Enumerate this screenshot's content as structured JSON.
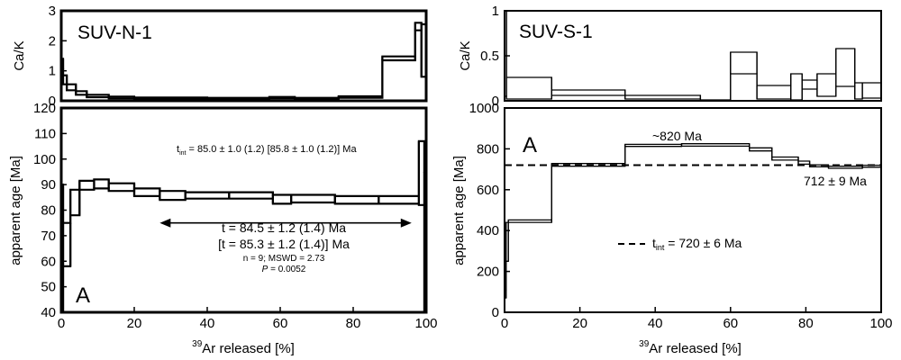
{
  "chart_data": [
    {
      "type": "step",
      "panel": "top-left",
      "sample_label": "SUV-N-1",
      "ylabel": "Ca/K",
      "xlim": [
        0,
        100
      ],
      "ylim": [
        0,
        3
      ],
      "yticks": [
        "0",
        "1",
        "2",
        "3"
      ],
      "spectrum": [
        {
          "x0": 0,
          "x1": 0.5,
          "lo": 1.05,
          "hi": 1.4
        },
        {
          "x0": 0.5,
          "x1": 1.5,
          "lo": 0.55,
          "hi": 0.85
        },
        {
          "x0": 1.5,
          "x1": 4,
          "lo": 0.35,
          "hi": 0.55
        },
        {
          "x0": 4,
          "x1": 7,
          "lo": 0.2,
          "hi": 0.32
        },
        {
          "x0": 7,
          "x1": 13,
          "lo": 0.12,
          "hi": 0.2
        },
        {
          "x0": 13,
          "x1": 20,
          "lo": 0.08,
          "hi": 0.14
        },
        {
          "x0": 20,
          "x1": 40,
          "lo": 0.06,
          "hi": 0.11
        },
        {
          "x0": 40,
          "x1": 57,
          "lo": 0.06,
          "hi": 0.1
        },
        {
          "x0": 57,
          "x1": 64,
          "lo": 0.08,
          "hi": 0.13
        },
        {
          "x0": 64,
          "x1": 76,
          "lo": 0.06,
          "hi": 0.1
        },
        {
          "x0": 76,
          "x1": 88,
          "lo": 0.1,
          "hi": 0.15
        },
        {
          "x0": 88,
          "x1": 97,
          "lo": 1.35,
          "hi": 1.48
        },
        {
          "x0": 97,
          "x1": 98.7,
          "lo": 2.35,
          "hi": 2.6
        },
        {
          "x0": 98.7,
          "x1": 100,
          "lo": 0.8,
          "hi": 2.55
        }
      ]
    },
    {
      "type": "step",
      "panel": "bottom-left",
      "panel_letter": "A",
      "xlabel_sup": "39",
      "xlabel_main": "Ar released [%]",
      "ylabel": "apparent age [Ma]",
      "xlim": [
        0,
        100
      ],
      "ylim": [
        40,
        120
      ],
      "xticks": [
        "0",
        "20",
        "40",
        "60",
        "80",
        "100"
      ],
      "yticks": [
        "40",
        "50",
        "60",
        "70",
        "80",
        "90",
        "100",
        "110",
        "120"
      ],
      "spectrum": [
        {
          "x0": 0,
          "x1": 0.5,
          "lo": 40,
          "hi": 90
        },
        {
          "x0": 0.5,
          "x1": 2.5,
          "lo": 58,
          "hi": 75
        },
        {
          "x0": 2.5,
          "x1": 5,
          "lo": 78,
          "hi": 88
        },
        {
          "x0": 5,
          "x1": 9,
          "lo": 88,
          "hi": 91.5
        },
        {
          "x0": 9,
          "x1": 13,
          "lo": 88.5,
          "hi": 92
        },
        {
          "x0": 13,
          "x1": 20,
          "lo": 87.5,
          "hi": 90.5
        },
        {
          "x0": 20,
          "x1": 27,
          "lo": 85.5,
          "hi": 88.5
        },
        {
          "x0": 27,
          "x1": 34,
          "lo": 84,
          "hi": 87.5
        },
        {
          "x0": 34,
          "x1": 46,
          "lo": 84.5,
          "hi": 87
        },
        {
          "x0": 46,
          "x1": 58,
          "lo": 84.5,
          "hi": 87
        },
        {
          "x0": 58,
          "x1": 63,
          "lo": 82.5,
          "hi": 86
        },
        {
          "x0": 63,
          "x1": 75,
          "lo": 83,
          "hi": 86
        },
        {
          "x0": 75,
          "x1": 87,
          "lo": 82.5,
          "hi": 85.5
        },
        {
          "x0": 87,
          "x1": 98,
          "lo": 82.5,
          "hi": 85.5
        },
        {
          "x0": 98,
          "x1": 99.5,
          "lo": 82,
          "hi": 107
        },
        {
          "x0": 99.5,
          "x1": 100,
          "lo": 40,
          "hi": 95
        }
      ],
      "annotations": {
        "tint_main": "t",
        "tint_sub": "int",
        "tint_rest": " = 85.0  ± 1.0 (1.2) [85.8 ± 1.0 (1.2)] Ma",
        "plateau_line1": "t = 84.5 ± 1.2 (1.4) Ma",
        "plateau_line2": "[t = 85.3 ± 1.2 (1.4)] Ma",
        "plateau_line3": "n = 9; MSWD = 2.73",
        "plateau_p_label": "P",
        "plateau_p_value": " = 0.0052",
        "arrow_from_x": 27,
        "arrow_to_x": 96,
        "arrow_y": 75
      }
    },
    {
      "type": "step",
      "panel": "top-right",
      "sample_label": "SUV-S-1",
      "ylabel": "Ca/K",
      "xlim": [
        0,
        100
      ],
      "ylim": [
        0,
        1
      ],
      "yticks": [
        "0",
        "0.5",
        "1"
      ],
      "spectrum": [
        {
          "x0": 0,
          "x1": 0.5,
          "lo": 0.05,
          "hi": 1.0
        },
        {
          "x0": 0.5,
          "x1": 12.5,
          "lo": 0.02,
          "hi": 0.26
        },
        {
          "x0": 12.5,
          "x1": 32,
          "lo": 0.06,
          "hi": 0.12
        },
        {
          "x0": 32,
          "x1": 52,
          "lo": 0.02,
          "hi": 0.06
        },
        {
          "x0": 52,
          "x1": 60,
          "lo": 0.0,
          "hi": 0.01
        },
        {
          "x0": 60,
          "x1": 67,
          "lo": 0.3,
          "hi": 0.54
        },
        {
          "x0": 67,
          "x1": 76,
          "lo": 0.02,
          "hi": 0.17
        },
        {
          "x0": 76,
          "x1": 79,
          "lo": 0.01,
          "hi": 0.3
        },
        {
          "x0": 79,
          "x1": 83,
          "lo": 0.13,
          "hi": 0.23
        },
        {
          "x0": 83,
          "x1": 88,
          "lo": 0.05,
          "hi": 0.3
        },
        {
          "x0": 88,
          "x1": 93,
          "lo": 0.16,
          "hi": 0.58
        },
        {
          "x0": 93,
          "x1": 95,
          "lo": 0.02,
          "hi": 0.2
        },
        {
          "x0": 95,
          "x1": 100,
          "lo": 0.03,
          "hi": 0.2
        }
      ]
    },
    {
      "type": "step",
      "panel": "bottom-right",
      "panel_letter": "A",
      "xlabel_sup": "39",
      "xlabel_main": "Ar released [%]",
      "ylabel": "apparent age [Ma]",
      "xlim": [
        0,
        100
      ],
      "ylim": [
        0,
        1000
      ],
      "xticks": [
        "0",
        "20",
        "40",
        "60",
        "80",
        "100"
      ],
      "yticks": [
        "0",
        "200",
        "400",
        "600",
        "800",
        "1000"
      ],
      "spectrum": [
        {
          "x0": 0,
          "x1": 0.4,
          "lo": 70,
          "hi": 110
        },
        {
          "x0": 0.4,
          "x1": 1,
          "lo": 250,
          "hi": 440
        },
        {
          "x0": 1,
          "x1": 12.5,
          "lo": 440,
          "hi": 452
        },
        {
          "x0": 12.5,
          "x1": 32,
          "lo": 715,
          "hi": 728
        },
        {
          "x0": 32,
          "x1": 47,
          "lo": 812,
          "hi": 822
        },
        {
          "x0": 47,
          "x1": 65,
          "lo": 813,
          "hi": 825
        },
        {
          "x0": 65,
          "x1": 71,
          "lo": 790,
          "hi": 805
        },
        {
          "x0": 71,
          "x1": 78,
          "lo": 745,
          "hi": 760
        },
        {
          "x0": 78,
          "x1": 81,
          "lo": 725,
          "hi": 740
        },
        {
          "x0": 81,
          "x1": 86,
          "lo": 712,
          "hi": 722
        },
        {
          "x0": 86,
          "x1": 95,
          "lo": 705,
          "hi": 715
        },
        {
          "x0": 95,
          "x1": 100,
          "lo": 710,
          "hi": 720
        }
      ],
      "reference_line": {
        "y": 720,
        "style": "dashed"
      },
      "annotations": {
        "peak_label": "~820 Ma",
        "plateau_label": "712 ± 9 Ma",
        "legend_main": "t",
        "legend_sub": "int",
        "legend_rest": " = 720 ± 6 Ma"
      }
    }
  ]
}
